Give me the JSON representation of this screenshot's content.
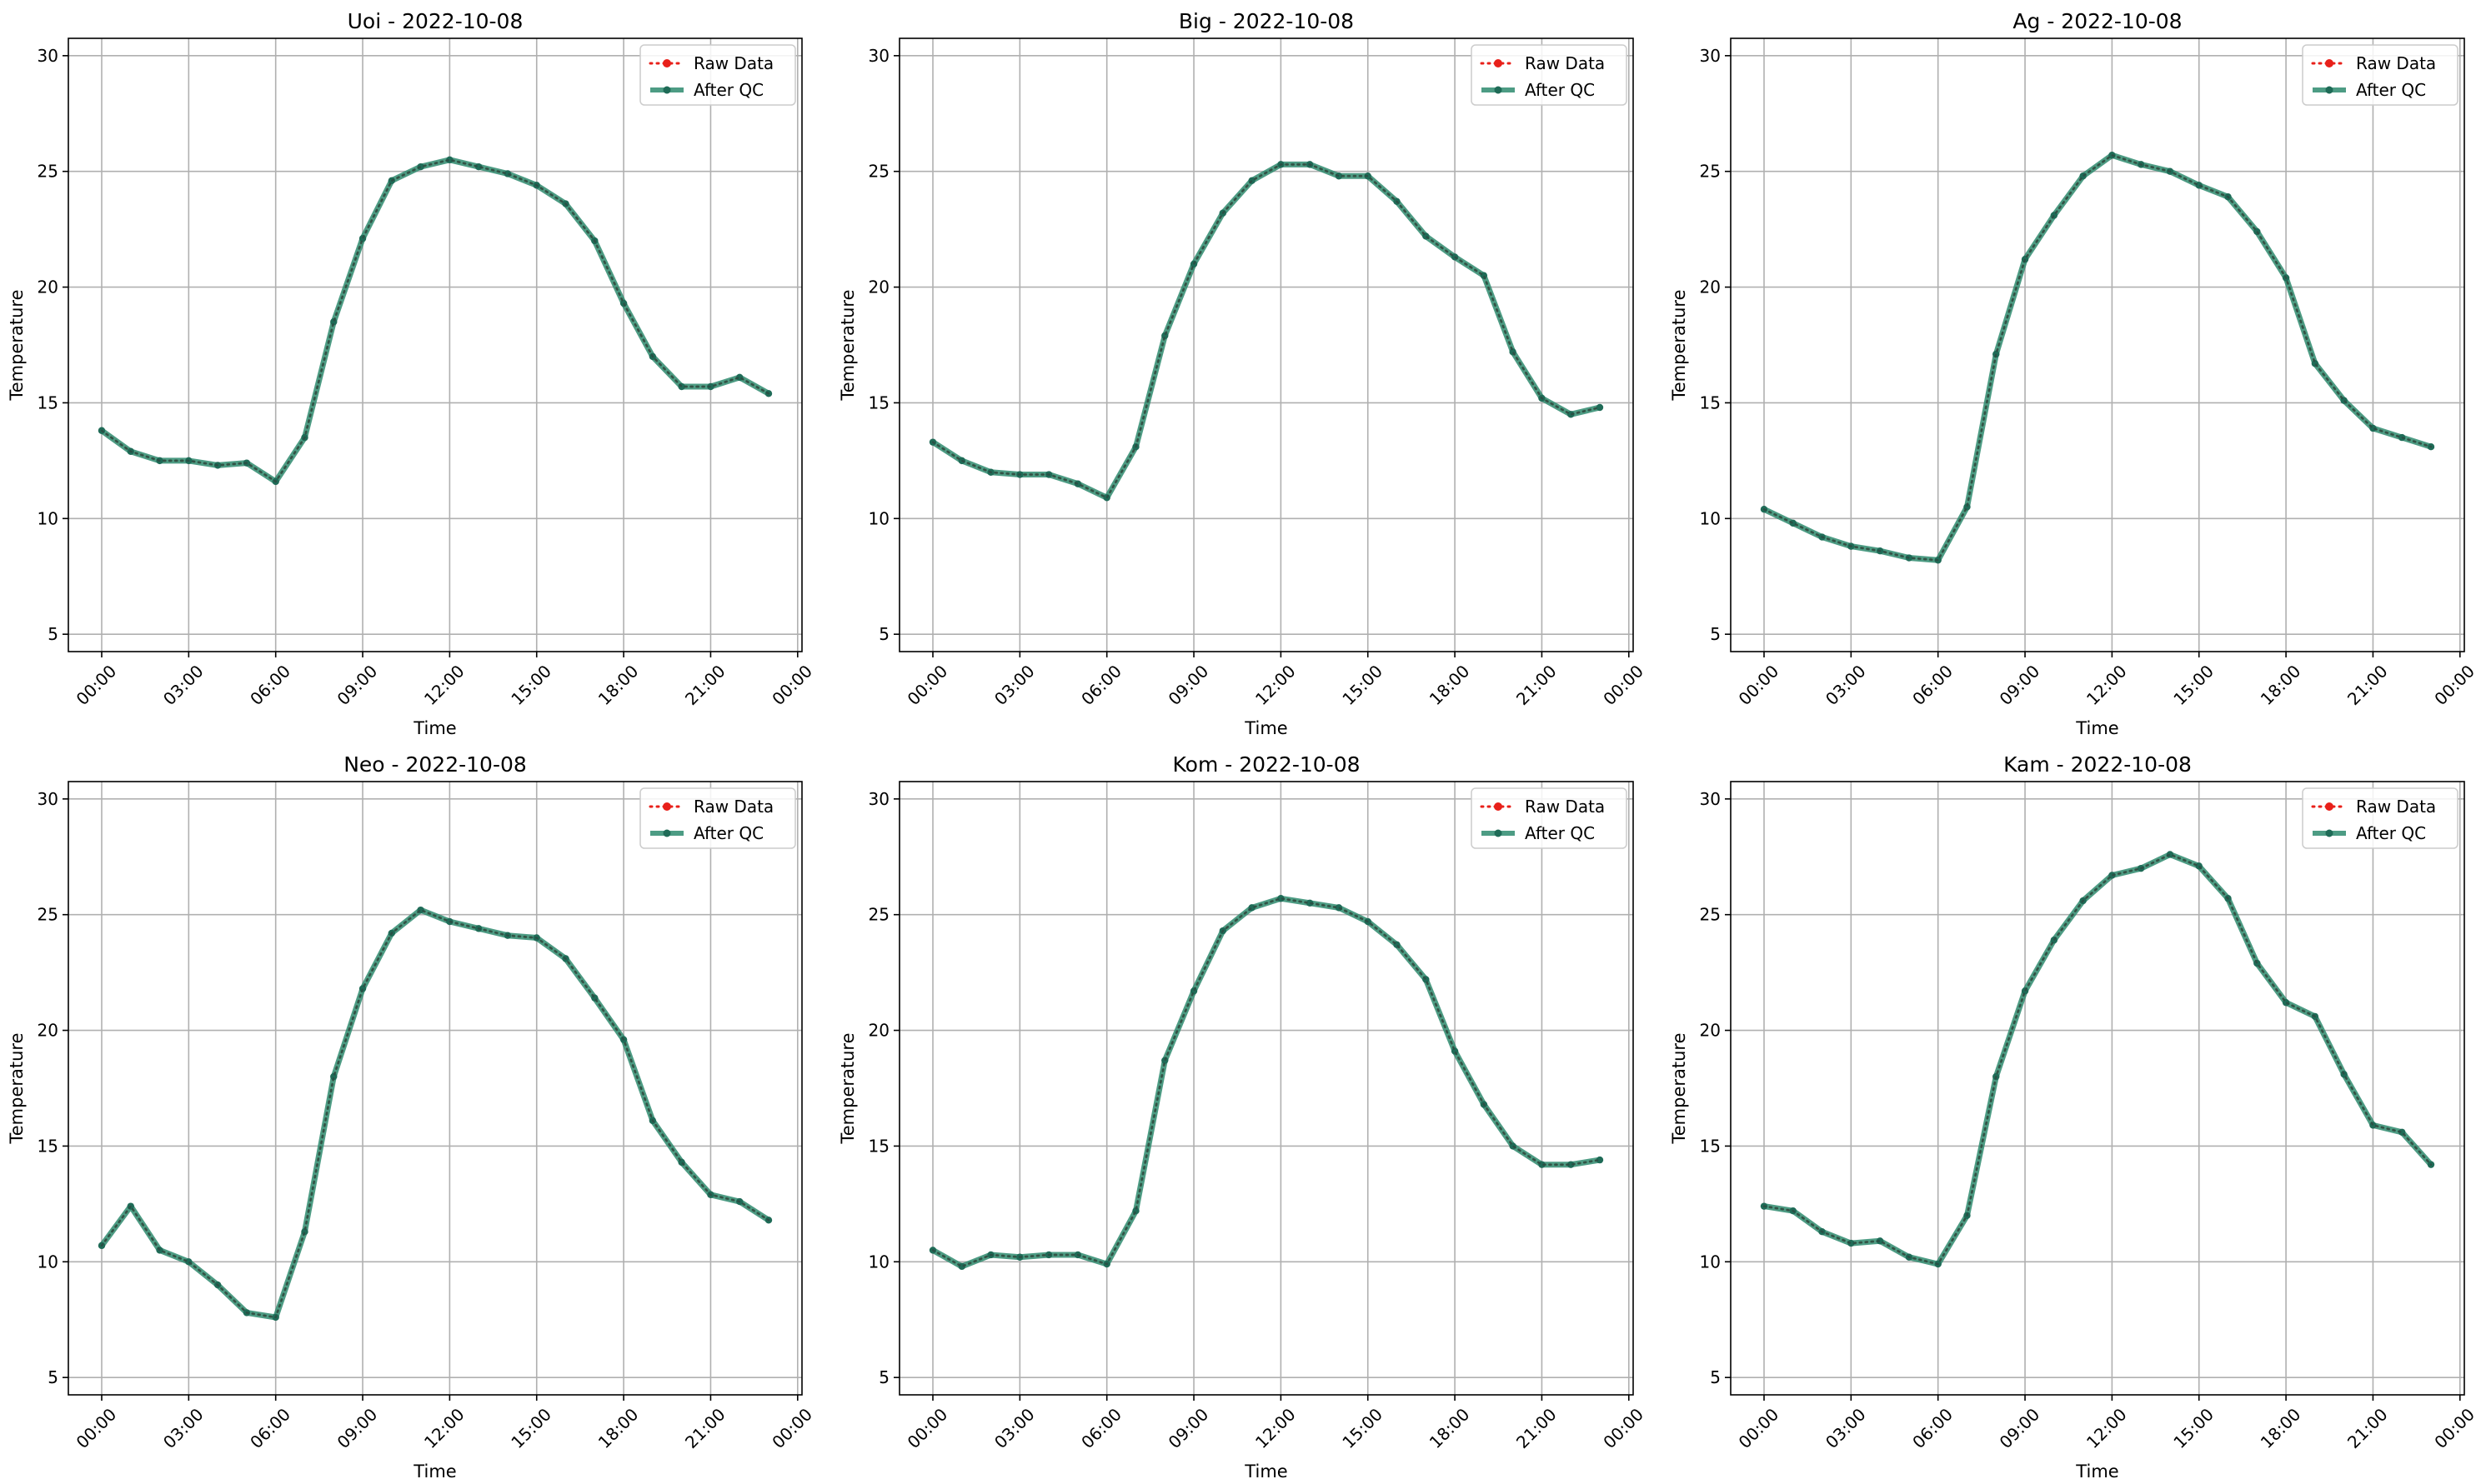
{
  "chart_data": [
    {
      "type": "line",
      "title": "Uoi - 2022-10-08",
      "xlabel": "Time",
      "ylabel": "Temperature",
      "ylim": [
        5,
        30
      ],
      "yticks": [
        5,
        10,
        15,
        20,
        25,
        30
      ],
      "xticks": [
        "00:00",
        "03:00",
        "06:00",
        "09:00",
        "12:00",
        "15:00",
        "18:00",
        "21:00",
        "00:00"
      ],
      "grid": true,
      "legend_position": "top-right",
      "x": [
        "00:00",
        "01:00",
        "02:00",
        "03:00",
        "04:00",
        "05:00",
        "06:00",
        "07:00",
        "08:00",
        "09:00",
        "10:00",
        "11:00",
        "12:00",
        "13:00",
        "14:00",
        "15:00",
        "16:00",
        "17:00",
        "18:00",
        "19:00",
        "20:00",
        "21:00",
        "22:00",
        "23:00"
      ],
      "series": [
        {
          "name": "Raw Data",
          "color": "#e8201a",
          "values": [
            13.8,
            12.9,
            12.5,
            12.5,
            12.3,
            12.4,
            11.6,
            13.5,
            18.5,
            22.1,
            24.6,
            25.2,
            25.5,
            25.2,
            24.9,
            24.4,
            23.6,
            22.0,
            19.3,
            17.0,
            15.7,
            15.7,
            16.1,
            15.4
          ]
        },
        {
          "name": "After QC",
          "color": "#2e8b6e",
          "values": [
            13.8,
            12.9,
            12.5,
            12.5,
            12.3,
            12.4,
            11.6,
            13.5,
            18.5,
            22.1,
            24.6,
            25.2,
            25.5,
            25.2,
            24.9,
            24.4,
            23.6,
            22.0,
            19.3,
            17.0,
            15.7,
            15.7,
            16.1,
            15.4
          ]
        }
      ]
    },
    {
      "type": "line",
      "title": "Big - 2022-10-08",
      "xlabel": "Time",
      "ylabel": "Temperature",
      "ylim": [
        5,
        30
      ],
      "yticks": [
        5,
        10,
        15,
        20,
        25,
        30
      ],
      "xticks": [
        "00:00",
        "03:00",
        "06:00",
        "09:00",
        "12:00",
        "15:00",
        "18:00",
        "21:00",
        "00:00"
      ],
      "grid": true,
      "legend_position": "top-right",
      "x": [
        "00:00",
        "01:00",
        "02:00",
        "03:00",
        "04:00",
        "05:00",
        "06:00",
        "07:00",
        "08:00",
        "09:00",
        "10:00",
        "11:00",
        "12:00",
        "13:00",
        "14:00",
        "15:00",
        "16:00",
        "17:00",
        "18:00",
        "19:00",
        "20:00",
        "21:00",
        "22:00",
        "23:00"
      ],
      "series": [
        {
          "name": "Raw Data",
          "color": "#e8201a",
          "values": [
            13.3,
            12.5,
            12.0,
            11.9,
            11.9,
            11.5,
            10.9,
            13.1,
            17.9,
            21.0,
            23.2,
            24.6,
            25.3,
            25.3,
            24.8,
            24.8,
            23.7,
            22.2,
            21.3,
            20.5,
            17.2,
            15.2,
            14.5,
            14.8
          ]
        },
        {
          "name": "After QC",
          "color": "#2e8b6e",
          "values": [
            13.3,
            12.5,
            12.0,
            11.9,
            11.9,
            11.5,
            10.9,
            13.1,
            17.9,
            21.0,
            23.2,
            24.6,
            25.3,
            25.3,
            24.8,
            24.8,
            23.7,
            22.2,
            21.3,
            20.5,
            17.2,
            15.2,
            14.5,
            14.8
          ]
        }
      ]
    },
    {
      "type": "line",
      "title": "Ag - 2022-10-08",
      "xlabel": "Time",
      "ylabel": "Temperature",
      "ylim": [
        5,
        30
      ],
      "yticks": [
        5,
        10,
        15,
        20,
        25,
        30
      ],
      "xticks": [
        "00:00",
        "03:00",
        "06:00",
        "09:00",
        "12:00",
        "15:00",
        "18:00",
        "21:00",
        "00:00"
      ],
      "grid": true,
      "legend_position": "top-right",
      "x": [
        "00:00",
        "01:00",
        "02:00",
        "03:00",
        "04:00",
        "05:00",
        "06:00",
        "07:00",
        "08:00",
        "09:00",
        "10:00",
        "11:00",
        "12:00",
        "13:00",
        "14:00",
        "15:00",
        "16:00",
        "17:00",
        "18:00",
        "19:00",
        "20:00",
        "21:00",
        "22:00",
        "23:00"
      ],
      "series": [
        {
          "name": "Raw Data",
          "color": "#e8201a",
          "values": [
            10.4,
            9.8,
            9.2,
            8.8,
            8.6,
            8.3,
            8.2,
            10.5,
            17.1,
            21.2,
            23.1,
            24.8,
            25.7,
            25.3,
            25.0,
            24.4,
            23.9,
            22.4,
            20.4,
            16.7,
            15.1,
            13.9,
            13.5,
            13.1
          ]
        },
        {
          "name": "After QC",
          "color": "#2e8b6e",
          "values": [
            10.4,
            9.8,
            9.2,
            8.8,
            8.6,
            8.3,
            8.2,
            10.5,
            17.1,
            21.2,
            23.1,
            24.8,
            25.7,
            25.3,
            25.0,
            24.4,
            23.9,
            22.4,
            20.4,
            16.7,
            15.1,
            13.9,
            13.5,
            13.1
          ]
        }
      ]
    },
    {
      "type": "line",
      "title": "Neo - 2022-10-08",
      "xlabel": "Time",
      "ylabel": "Temperature",
      "ylim": [
        5,
        30
      ],
      "yticks": [
        5,
        10,
        15,
        20,
        25,
        30
      ],
      "xticks": [
        "00:00",
        "03:00",
        "06:00",
        "09:00",
        "12:00",
        "15:00",
        "18:00",
        "21:00",
        "00:00"
      ],
      "grid": true,
      "legend_position": "top-right",
      "x": [
        "00:00",
        "01:00",
        "02:00",
        "03:00",
        "04:00",
        "05:00",
        "06:00",
        "07:00",
        "08:00",
        "09:00",
        "10:00",
        "11:00",
        "12:00",
        "13:00",
        "14:00",
        "15:00",
        "16:00",
        "17:00",
        "18:00",
        "19:00",
        "20:00",
        "21:00",
        "22:00",
        "23:00"
      ],
      "series": [
        {
          "name": "Raw Data",
          "color": "#e8201a",
          "values": [
            10.7,
            12.4,
            10.5,
            10.0,
            9.0,
            7.8,
            7.6,
            11.3,
            18.0,
            21.8,
            24.2,
            25.2,
            24.7,
            24.4,
            24.1,
            24.0,
            23.1,
            21.4,
            19.6,
            16.1,
            14.3,
            12.9,
            12.6,
            11.8
          ]
        },
        {
          "name": "After QC",
          "color": "#2e8b6e",
          "values": [
            10.7,
            12.4,
            10.5,
            10.0,
            9.0,
            7.8,
            7.6,
            11.3,
            18.0,
            21.8,
            24.2,
            25.2,
            24.7,
            24.4,
            24.1,
            24.0,
            23.1,
            21.4,
            19.6,
            16.1,
            14.3,
            12.9,
            12.6,
            11.8
          ]
        }
      ]
    },
    {
      "type": "line",
      "title": "Kom - 2022-10-08",
      "xlabel": "Time",
      "ylabel": "Temperature",
      "ylim": [
        5,
        30
      ],
      "yticks": [
        5,
        10,
        15,
        20,
        25,
        30
      ],
      "xticks": [
        "00:00",
        "03:00",
        "06:00",
        "09:00",
        "12:00",
        "15:00",
        "18:00",
        "21:00",
        "00:00"
      ],
      "grid": true,
      "legend_position": "top-right",
      "x": [
        "00:00",
        "01:00",
        "02:00",
        "03:00",
        "04:00",
        "05:00",
        "06:00",
        "07:00",
        "08:00",
        "09:00",
        "10:00",
        "11:00",
        "12:00",
        "13:00",
        "14:00",
        "15:00",
        "16:00",
        "17:00",
        "18:00",
        "19:00",
        "20:00",
        "21:00",
        "22:00",
        "23:00"
      ],
      "series": [
        {
          "name": "Raw Data",
          "color": "#e8201a",
          "values": [
            10.5,
            9.8,
            10.3,
            10.2,
            10.3,
            10.3,
            9.9,
            12.2,
            18.7,
            21.7,
            24.3,
            25.3,
            25.7,
            25.5,
            25.3,
            24.7,
            23.7,
            22.2,
            19.1,
            16.8,
            15.0,
            14.2,
            14.2,
            14.4
          ]
        },
        {
          "name": "After QC",
          "color": "#2e8b6e",
          "values": [
            10.5,
            9.8,
            10.3,
            10.2,
            10.3,
            10.3,
            9.9,
            12.2,
            18.7,
            21.7,
            24.3,
            25.3,
            25.7,
            25.5,
            25.3,
            24.7,
            23.7,
            22.2,
            19.1,
            16.8,
            15.0,
            14.2,
            14.2,
            14.4
          ]
        }
      ]
    },
    {
      "type": "line",
      "title": "Kam - 2022-10-08",
      "xlabel": "Time",
      "ylabel": "Temperature",
      "ylim": [
        5,
        30
      ],
      "yticks": [
        5,
        10,
        15,
        20,
        25,
        30
      ],
      "xticks": [
        "00:00",
        "03:00",
        "06:00",
        "09:00",
        "12:00",
        "15:00",
        "18:00",
        "21:00",
        "00:00"
      ],
      "grid": true,
      "legend_position": "top-right",
      "x": [
        "00:00",
        "01:00",
        "02:00",
        "03:00",
        "04:00",
        "05:00",
        "06:00",
        "07:00",
        "08:00",
        "09:00",
        "10:00",
        "11:00",
        "12:00",
        "13:00",
        "14:00",
        "15:00",
        "16:00",
        "17:00",
        "18:00",
        "19:00",
        "20:00",
        "21:00",
        "22:00",
        "23:00"
      ],
      "series": [
        {
          "name": "Raw Data",
          "color": "#e8201a",
          "values": [
            12.4,
            12.2,
            11.3,
            10.8,
            10.9,
            10.2,
            9.9,
            12.0,
            18.0,
            21.7,
            23.9,
            25.6,
            26.7,
            27.0,
            27.6,
            27.1,
            25.7,
            22.9,
            21.2,
            20.6,
            18.1,
            15.9,
            15.6,
            14.2
          ]
        },
        {
          "name": "After QC",
          "color": "#2e8b6e",
          "values": [
            12.4,
            12.2,
            11.3,
            10.8,
            10.9,
            10.2,
            9.9,
            12.0,
            18.0,
            21.7,
            23.9,
            25.6,
            26.7,
            27.0,
            27.6,
            27.1,
            25.7,
            22.9,
            21.2,
            20.6,
            18.1,
            15.9,
            15.6,
            14.2
          ]
        }
      ]
    }
  ]
}
